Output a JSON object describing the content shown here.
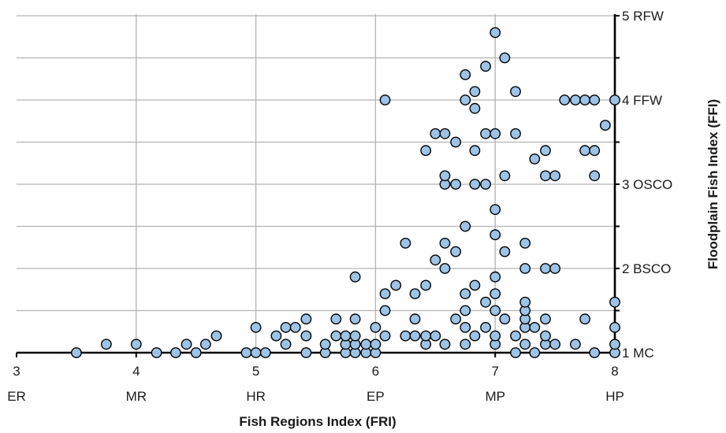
{
  "chart_data": {
    "type": "scatter",
    "title": "",
    "xlabel": "Fish Regions Index (FRI)",
    "ylabel": "Floodplain  Fish Index (FFI)",
    "xlim": [
      3,
      8
    ],
    "ylim": [
      1,
      5
    ],
    "x_ticks": [
      {
        "value": 3,
        "label": "3",
        "category": "ER"
      },
      {
        "value": 4,
        "label": "4",
        "category": "MR"
      },
      {
        "value": 5,
        "label": "5",
        "category": "HR"
      },
      {
        "value": 6,
        "label": "6",
        "category": "EP"
      },
      {
        "value": 7,
        "label": "7",
        "category": "MP"
      },
      {
        "value": 8,
        "label": "8",
        "category": "HP"
      }
    ],
    "y_ticks": [
      {
        "value": 1,
        "label": "1 MC"
      },
      {
        "value": 2,
        "label": "2 BSCO"
      },
      {
        "value": 3,
        "label": "3 OSCO"
      },
      {
        "value": 4,
        "label": "4 FFW"
      },
      {
        "value": 5,
        "label": "5 RFW"
      }
    ],
    "grid": {
      "x": true,
      "y": true,
      "y_minor_step": 0.5
    },
    "legend": "none",
    "marker_fill": "#9dc3e6",
    "marker_stroke": "#000000",
    "points": [
      [
        3.5,
        1.0
      ],
      [
        3.75,
        1.1
      ],
      [
        4.0,
        1.1
      ],
      [
        4.17,
        1.0
      ],
      [
        4.33,
        1.0
      ],
      [
        4.42,
        1.1
      ],
      [
        4.5,
        1.0
      ],
      [
        4.58,
        1.1
      ],
      [
        4.67,
        1.2
      ],
      [
        4.92,
        1.0
      ],
      [
        5.0,
        1.0
      ],
      [
        5.0,
        1.3
      ],
      [
        5.08,
        1.0
      ],
      [
        5.17,
        1.2
      ],
      [
        5.25,
        1.1
      ],
      [
        5.25,
        1.3
      ],
      [
        5.33,
        1.3
      ],
      [
        5.42,
        1.0
      ],
      [
        5.42,
        1.2
      ],
      [
        5.42,
        1.4
      ],
      [
        5.58,
        1.0
      ],
      [
        5.58,
        1.1
      ],
      [
        5.67,
        1.2
      ],
      [
        5.67,
        1.4
      ],
      [
        5.75,
        1.0
      ],
      [
        5.75,
        1.1
      ],
      [
        5.75,
        1.2
      ],
      [
        5.83,
        1.0
      ],
      [
        5.83,
        1.1
      ],
      [
        5.83,
        1.2
      ],
      [
        5.83,
        1.4
      ],
      [
        5.83,
        1.9
      ],
      [
        5.92,
        1.0
      ],
      [
        5.92,
        1.1
      ],
      [
        6.0,
        1.0
      ],
      [
        6.0,
        1.1
      ],
      [
        6.0,
        1.3
      ],
      [
        6.08,
        1.2
      ],
      [
        6.08,
        1.5
      ],
      [
        6.08,
        1.7
      ],
      [
        6.08,
        4.0
      ],
      [
        6.17,
        1.8
      ],
      [
        6.25,
        2.3
      ],
      [
        6.25,
        1.2
      ],
      [
        6.33,
        1.2
      ],
      [
        6.33,
        1.4
      ],
      [
        6.33,
        1.7
      ],
      [
        6.42,
        1.1
      ],
      [
        6.42,
        1.2
      ],
      [
        6.42,
        1.8
      ],
      [
        6.42,
        3.4
      ],
      [
        6.5,
        1.2
      ],
      [
        6.5,
        2.1
      ],
      [
        6.5,
        3.6
      ],
      [
        6.58,
        1.1
      ],
      [
        6.58,
        2.0
      ],
      [
        6.58,
        2.3
      ],
      [
        6.58,
        3.0
      ],
      [
        6.58,
        3.1
      ],
      [
        6.58,
        3.6
      ],
      [
        6.67,
        1.4
      ],
      [
        6.67,
        2.2
      ],
      [
        6.67,
        3.0
      ],
      [
        6.67,
        3.5
      ],
      [
        6.75,
        1.1
      ],
      [
        6.75,
        1.3
      ],
      [
        6.75,
        1.5
      ],
      [
        6.75,
        1.7
      ],
      [
        6.75,
        2.5
      ],
      [
        6.75,
        4.0
      ],
      [
        6.75,
        4.3
      ],
      [
        6.83,
        1.2
      ],
      [
        6.83,
        1.8
      ],
      [
        6.83,
        3.0
      ],
      [
        6.83,
        3.4
      ],
      [
        6.83,
        3.9
      ],
      [
        6.83,
        4.1
      ],
      [
        6.92,
        1.3
      ],
      [
        6.92,
        1.6
      ],
      [
        6.92,
        3.0
      ],
      [
        6.92,
        3.6
      ],
      [
        6.92,
        4.4
      ],
      [
        7.0,
        1.1
      ],
      [
        7.0,
        1.2
      ],
      [
        7.0,
        1.5
      ],
      [
        7.0,
        1.7
      ],
      [
        7.0,
        1.9
      ],
      [
        7.0,
        2.4
      ],
      [
        7.0,
        2.7
      ],
      [
        7.0,
        3.6
      ],
      [
        7.0,
        4.8
      ],
      [
        7.08,
        1.4
      ],
      [
        7.08,
        2.2
      ],
      [
        7.08,
        3.1
      ],
      [
        7.08,
        4.5
      ],
      [
        7.17,
        1.0
      ],
      [
        7.17,
        1.2
      ],
      [
        7.17,
        3.6
      ],
      [
        7.17,
        4.1
      ],
      [
        7.25,
        1.1
      ],
      [
        7.25,
        1.3
      ],
      [
        7.25,
        1.4
      ],
      [
        7.25,
        1.5
      ],
      [
        7.25,
        1.6
      ],
      [
        7.25,
        2.0
      ],
      [
        7.25,
        2.3
      ],
      [
        7.33,
        1.0
      ],
      [
        7.33,
        1.3
      ],
      [
        7.33,
        3.3
      ],
      [
        7.42,
        1.1
      ],
      [
        7.42,
        1.2
      ],
      [
        7.42,
        1.4
      ],
      [
        7.42,
        2.0
      ],
      [
        7.42,
        3.1
      ],
      [
        7.42,
        3.4
      ],
      [
        7.5,
        1.1
      ],
      [
        7.5,
        2.0
      ],
      [
        7.5,
        3.1
      ],
      [
        7.58,
        4.0
      ],
      [
        7.67,
        1.1
      ],
      [
        7.67,
        4.0
      ],
      [
        7.75,
        1.4
      ],
      [
        7.75,
        3.4
      ],
      [
        7.75,
        4.0
      ],
      [
        7.83,
        1.0
      ],
      [
        7.83,
        3.1
      ],
      [
        7.83,
        3.4
      ],
      [
        7.83,
        4.0
      ],
      [
        7.92,
        3.7
      ],
      [
        8.0,
        1.0
      ],
      [
        8.0,
        1.1
      ],
      [
        8.0,
        1.3
      ],
      [
        8.0,
        1.6
      ],
      [
        8.0,
        4.0
      ]
    ]
  }
}
